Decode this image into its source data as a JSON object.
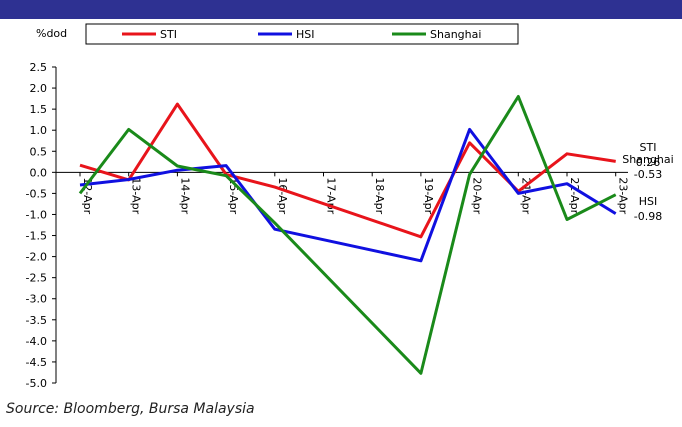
{
  "header": {
    "color": "#2e3192"
  },
  "source": "Source: Bloomberg, Bursa Malaysia",
  "chart_data": {
    "type": "line",
    "ylabel": "%dod",
    "xlabel": "",
    "ylim": [
      -5.0,
      2.5
    ],
    "yticks": [
      2.5,
      2.0,
      1.5,
      1.0,
      0.5,
      0.0,
      -0.5,
      -1.0,
      -1.5,
      -2.0,
      -2.5,
      -3.0,
      -3.5,
      -4.0,
      -4.5,
      -5.0
    ],
    "ytick_labels": [
      "2.5",
      "2.0",
      "1.5",
      "1.0",
      "0.5",
      "0.0",
      "-0.5",
      "-1.0",
      "-1.5",
      "-2.0",
      "-2.5",
      "-3.0",
      "-3.5",
      "-4.0",
      "-4.5",
      "-5.0"
    ],
    "categories": [
      "12-Apr",
      "13-Apr",
      "14-Apr",
      "15-Apr",
      "16-Apr",
      "17-Apr",
      "18-Apr",
      "19-Apr",
      "20-Apr",
      "21-Apr",
      "22-Apr",
      "23-Apr"
    ],
    "grid": false,
    "legend_position": "top",
    "series": [
      {
        "name": "STI",
        "color": "#e8141b",
        "values": [
          0.17,
          -0.18,
          1.62,
          -0.05,
          -0.35,
          null,
          null,
          -1.53,
          0.7,
          -0.45,
          0.44,
          0.26
        ]
      },
      {
        "name": "HSI",
        "color": "#1010e0",
        "values": [
          -0.3,
          -0.17,
          0.05,
          0.16,
          -1.35,
          null,
          null,
          -2.1,
          1.02,
          -0.5,
          -0.27,
          -0.98
        ]
      },
      {
        "name": "Shanghai",
        "color": "#1a8a1a",
        "values": [
          -0.5,
          1.02,
          0.15,
          -0.08,
          -1.2,
          null,
          null,
          -4.77,
          -0.05,
          1.8,
          -1.12,
          -0.53
        ]
      }
    ],
    "annotations": [
      {
        "series": "STI",
        "name": "STI",
        "value": "0.26"
      },
      {
        "series": "Shanghai",
        "name": "Shanghai",
        "value": "-0.53"
      },
      {
        "series": "HSI",
        "name": "HSI",
        "value": "-0.98"
      }
    ]
  }
}
